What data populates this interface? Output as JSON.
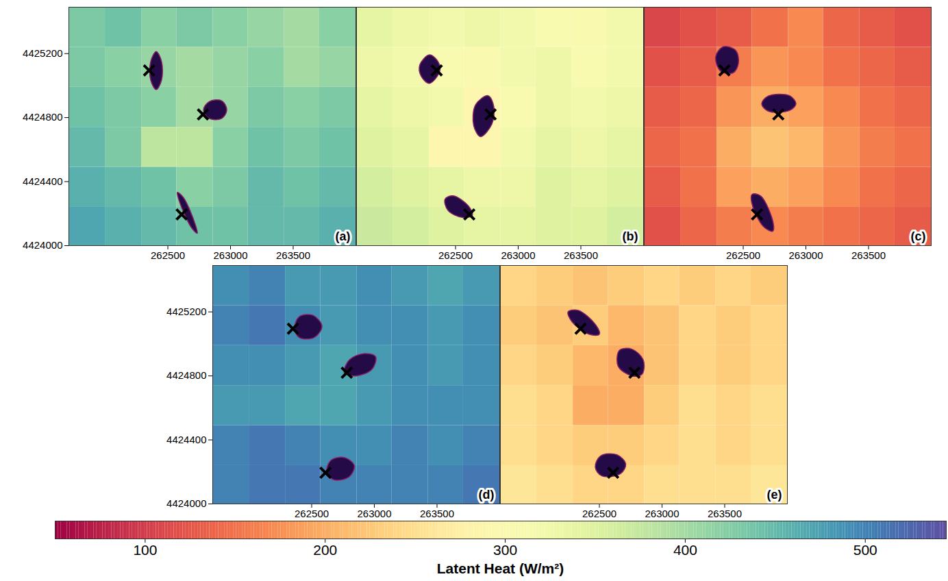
{
  "chart_data": [
    {
      "type": "heatmap",
      "panel": "(a)",
      "xlim": [
        261710,
        264000
      ],
      "ylim": [
        4424000,
        4425490
      ],
      "xticks": [
        262500,
        263000,
        263500
      ],
      "yticks": [
        4424000,
        4424400,
        4424800,
        4425200
      ],
      "cells": {
        "x_edges": [
          261710,
          262000,
          262290,
          262570,
          262860,
          263140,
          263430,
          263710,
          264000
        ],
        "y_edges": [
          4425490,
          4425240,
          4424990,
          4424740,
          4424490,
          4424240,
          4424000
        ],
        "values": [
          [
            430,
            440,
            420,
            430,
            420,
            410,
            400,
            420
          ],
          [
            430,
            420,
            410,
            400,
            410,
            420,
            400,
            410
          ],
          [
            440,
            430,
            420,
            400,
            410,
            430,
            420,
            430
          ],
          [
            450,
            430,
            380,
            380,
            420,
            440,
            430,
            440
          ],
          [
            460,
            450,
            440,
            420,
            430,
            450,
            440,
            450
          ],
          [
            470,
            460,
            450,
            440,
            440,
            450,
            450,
            460
          ]
        ]
      },
      "towers": {
        "marker": "x",
        "x": [
          262350,
          262780,
          262610
        ],
        "y": [
          4425095,
          4424820,
          4424195
        ]
      },
      "footprints": [
        {
          "x": [
            262407,
            262450,
            262450,
            262407,
            262363,
            262363
          ],
          "y": [
            4425213,
            4425150,
            4425035,
            4424975,
            4425035,
            4425150
          ]
        },
        {
          "x": [
            262784,
            262830,
            262930,
            262970,
            262930,
            262830
          ],
          "y": [
            4424848,
            4424900,
            4424905,
            4424848,
            4424795,
            4424795
          ]
        },
        {
          "x": [
            262576,
            262625,
            262720,
            262735,
            262690,
            262590
          ],
          "y": [
            4424333,
            4424300,
            4424130,
            4424077,
            4424110,
            4424280
          ]
        }
      ]
    },
    {
      "type": "heatmap",
      "panel": "(b)",
      "tick_labels": "x",
      "xlim": [
        261710,
        264000
      ],
      "ylim": [
        4424000,
        4425490
      ],
      "xticks": [
        262500,
        263000,
        263500
      ],
      "cells": {
        "x_edges": [
          261710,
          262000,
          262290,
          262570,
          262860,
          263140,
          263430,
          263710,
          264000
        ],
        "y_edges": [
          4425490,
          4425240,
          4424990,
          4424740,
          4424490,
          4424240,
          4424000
        ],
        "values": [
          [
            340,
            330,
            320,
            330,
            320,
            310,
            300,
            320
          ],
          [
            330,
            320,
            310,
            300,
            320,
            330,
            310,
            320
          ],
          [
            340,
            330,
            320,
            290,
            310,
            330,
            320,
            330
          ],
          [
            350,
            340,
            290,
            290,
            320,
            340,
            330,
            340
          ],
          [
            360,
            350,
            340,
            330,
            330,
            350,
            340,
            350
          ],
          [
            370,
            360,
            350,
            340,
            340,
            350,
            350,
            360
          ]
        ]
      },
      "towers": {
        "marker": "x",
        "x": [
          262350,
          262780,
          262610
        ],
        "y": [
          4425095,
          4424820,
          4424195
        ]
      },
      "footprints": [
        {
          "x": [
            262292,
            262360,
            262374,
            262292,
            262225,
            262215
          ],
          "y": [
            4425192,
            4425150,
            4425090,
            4425014,
            4425060,
            4425130
          ]
        },
        {
          "x": [
            262760,
            262805,
            262790,
            262700,
            262645,
            262660
          ],
          "y": [
            4424937,
            4424870,
            4424760,
            4424681,
            4424750,
            4424880
          ]
        },
        {
          "x": [
            262416,
            262480,
            262600,
            262634,
            262560,
            262440
          ],
          "y": [
            4424290,
            4424311,
            4424250,
            4424190,
            4424175,
            4424220
          ]
        }
      ]
    },
    {
      "type": "heatmap",
      "panel": "(c)",
      "tick_labels": "x",
      "xlim": [
        261710,
        264000
      ],
      "ylim": [
        4424000,
        4425490
      ],
      "xticks": [
        262500,
        263000,
        263500
      ],
      "cells": {
        "x_edges": [
          261710,
          262000,
          262290,
          262570,
          262860,
          263140,
          263430,
          263710,
          264000
        ],
        "y_edges": [
          4425490,
          4425240,
          4424990,
          4424740,
          4424490,
          4424240,
          4424000
        ],
        "values": [
          [
            110,
            120,
            130,
            150,
            170,
            140,
            130,
            120
          ],
          [
            120,
            130,
            160,
            180,
            170,
            150,
            140,
            130
          ],
          [
            130,
            140,
            180,
            200,
            190,
            170,
            150,
            140
          ],
          [
            140,
            150,
            200,
            220,
            210,
            180,
            160,
            150
          ],
          [
            130,
            150,
            190,
            200,
            190,
            170,
            150,
            140
          ],
          [
            120,
            140,
            160,
            170,
            160,
            150,
            140,
            130
          ]
        ]
      },
      "towers": {
        "marker": "x",
        "x": [
          262350,
          262780,
          262610
        ],
        "y": [
          4425095,
          4424820,
          4424195
        ]
      },
      "footprints": [
        {
          "x": [
            262340,
            262440,
            262462,
            262420,
            262320,
            262280
          ],
          "y": [
            4425243,
            4425220,
            4425140,
            4425080,
            4425090,
            4425180
          ]
        },
        {
          "x": [
            262647,
            262700,
            262870,
            262921,
            262870,
            262700
          ],
          "y": [
            4424886,
            4424935,
            4424937,
            4424886,
            4424845,
            4424840
          ]
        },
        {
          "x": [
            262570,
            262640,
            262740,
            262735,
            262660,
            262570
          ],
          "y": [
            4424320,
            4424310,
            4424140,
            4424090,
            4424120,
            4424260
          ]
        }
      ]
    },
    {
      "type": "heatmap",
      "panel": "(d)",
      "xlim": [
        261710,
        264000
      ],
      "ylim": [
        4424000,
        4425490
      ],
      "xticks": [
        262500,
        263000,
        263500
      ],
      "yticks": [
        4424000,
        4424400,
        4424800,
        4425200
      ],
      "cells": {
        "x_edges": [
          261710,
          262000,
          262290,
          262570,
          262860,
          263140,
          263430,
          263710,
          264000
        ],
        "y_edges": [
          4425490,
          4425240,
          4424990,
          4424740,
          4424490,
          4424240,
          4424000
        ],
        "values": [
          [
            490,
            500,
            480,
            480,
            490,
            480,
            470,
            480
          ],
          [
            500,
            510,
            490,
            480,
            490,
            490,
            480,
            490
          ],
          [
            490,
            490,
            480,
            470,
            480,
            490,
            480,
            490
          ],
          [
            480,
            480,
            470,
            470,
            480,
            490,
            490,
            490
          ],
          [
            500,
            510,
            500,
            490,
            490,
            500,
            490,
            500
          ],
          [
            500,
            510,
            510,
            500,
            500,
            500,
            500,
            510
          ]
        ]
      },
      "towers": {
        "marker": "x",
        "x": [
          262350,
          262780,
          262610
        ],
        "y": [
          4425095,
          4424820,
          4424195
        ]
      },
      "footprints": [
        {
          "x": [
            262364,
            262400,
            262510,
            262582,
            262520,
            262400
          ],
          "y": [
            4425100,
            4425170,
            4425179,
            4425110,
            4425040,
            4425040
          ]
        },
        {
          "x": [
            262760,
            262800,
            262920,
            263010,
            262980,
            262850
          ],
          "y": [
            4424820,
            4424900,
            4424940,
            4424920,
            4424840,
            4424800
          ]
        },
        {
          "x": [
            262620,
            262650,
            262760,
            262840,
            262800,
            262680
          ],
          "y": [
            4424190,
            4424270,
            4424290,
            4424240,
            4424170,
            4424150
          ]
        }
      ]
    },
    {
      "type": "heatmap",
      "panel": "(e)",
      "tick_labels": "x",
      "xlim": [
        261710,
        264000
      ],
      "ylim": [
        4424000,
        4425490
      ],
      "xticks": [
        262500,
        263000,
        263500
      ],
      "cells": {
        "x_edges": [
          261710,
          262000,
          262290,
          262570,
          262860,
          263140,
          263430,
          263710,
          264000
        ],
        "y_edges": [
          4425490,
          4425240,
          4424990,
          4424740,
          4424490,
          4424240,
          4424000
        ],
        "values": [
          [
            240,
            230,
            220,
            230,
            240,
            230,
            240,
            230
          ],
          [
            230,
            220,
            230,
            210,
            220,
            240,
            230,
            240
          ],
          [
            240,
            230,
            210,
            200,
            220,
            240,
            230,
            240
          ],
          [
            250,
            240,
            200,
            200,
            230,
            250,
            240,
            250
          ],
          [
            250,
            240,
            230,
            230,
            240,
            250,
            240,
            250
          ],
          [
            260,
            250,
            240,
            240,
            250,
            250,
            250,
            260
          ]
        ]
      },
      "towers": {
        "marker": "x",
        "x": [
          262350,
          262780,
          262610
        ],
        "y": [
          4425095,
          4424820,
          4424195
        ]
      },
      "footprints": [
        {
          "x": [
            262250,
            262330,
            262470,
            262500,
            262420,
            262280
          ],
          "y": [
            4425200,
            4425210,
            4425120,
            4425060,
            4425060,
            4425140
          ]
        },
        {
          "x": [
            262660,
            262760,
            262850,
            262840,
            262760,
            262650
          ],
          "y": [
            4424960,
            4424967,
            4424900,
            4424810,
            4424800,
            4424860
          ]
        },
        {
          "x": [
            262467,
            262510,
            262640,
            262710,
            262670,
            262520
          ],
          "y": [
            4424230,
            4424300,
            4424307,
            4424250,
            4424190,
            4424175
          ]
        }
      ]
    }
  ],
  "colorbar": {
    "label": "Latent Heat (W/m²)",
    "range": [
      50,
      545
    ],
    "ticks": [
      100,
      200,
      300,
      400,
      500
    ]
  }
}
